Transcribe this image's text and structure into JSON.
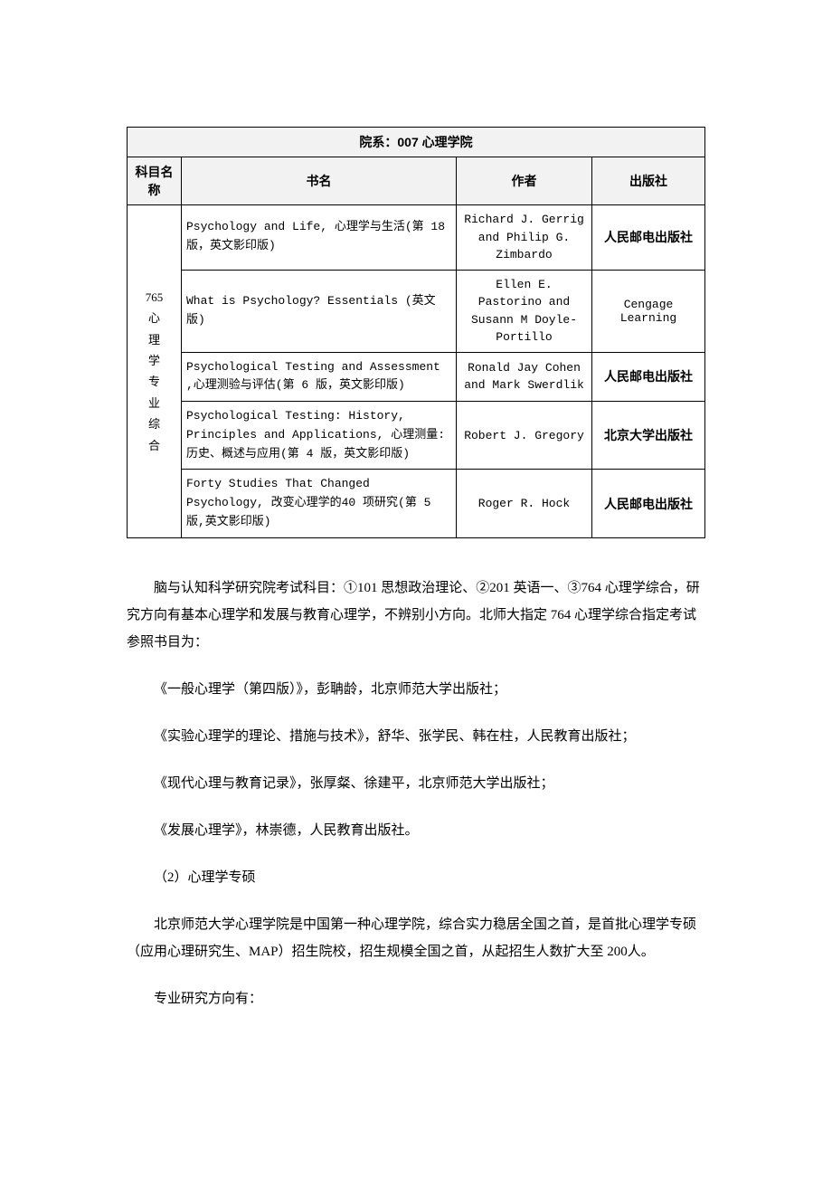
{
  "table": {
    "caption": "院系：007 心理学院",
    "columns": [
      "科目名称",
      "书名",
      "作者",
      "出版社"
    ],
    "subject": {
      "code": "765",
      "name_vertical": "心理学专业综合"
    },
    "rows": [
      {
        "book": "Psychology and Life,\n心理学与生活(第 18 版，英文影印版)",
        "author": "Richard J. Gerrig and Philip G. Zimbardo",
        "publisher": "人民邮电出版社",
        "pub_en": false
      },
      {
        "book": "What is Psychology? Essentials (英文版)",
        "author": "Ellen E. Pastorino and Susann M Doyle-Portillo",
        "publisher": "Cengage Learning",
        "pub_en": true
      },
      {
        "book": "Psychological Testing and Assessment ,心理测验与评估(第 6 版，英文影印版)",
        "author": "Ronald Jay Cohen and Mark Swerdlik",
        "publisher": "人民邮电出版社",
        "pub_en": false
      },
      {
        "book": "Psychological Testing: History, Principles and Applications, 心理测量:历史、概述与应用(第 4 版，英文影印版)",
        "author": "Robert J. Gregory",
        "publisher": "北京大学出版社",
        "pub_en": false
      },
      {
        "book": "Forty Studies That Changed Psychology, 改变心理学的40 项研究(第 5 版,英文影印版)",
        "author": "Roger R. Hock",
        "publisher": "人民邮电出版社",
        "pub_en": false
      }
    ]
  },
  "paragraphs": [
    "脑与认知科学研究院考试科目：①101 思想政治理论、②201 英语一、③764 心理学综合，研究方向有基本心理学和发展与教育心理学，不辨别小方向。北师大指定 764 心理学综合指定考试参照书目为：",
    "《一般心理学（第四版）》，彭聃龄，北京师范大学出版社；",
    "《实验心理学的理论、措施与技术》，舒华、张学民、韩在柱，人民教育出版社；",
    "《现代心理与教育记录》，张厚粲、徐建平，北京师范大学出版社；",
    "《发展心理学》，林崇德，人民教育出版社。",
    "（2）心理学专硕",
    "北京师范大学心理学院是中国第一种心理学院，综合实力稳居全国之首，是首批心理学专硕（应用心理研究生、MAP）招生院校，招生规模全国之首，从起招生人数扩大至 200人。",
    "专业研究方向有："
  ]
}
